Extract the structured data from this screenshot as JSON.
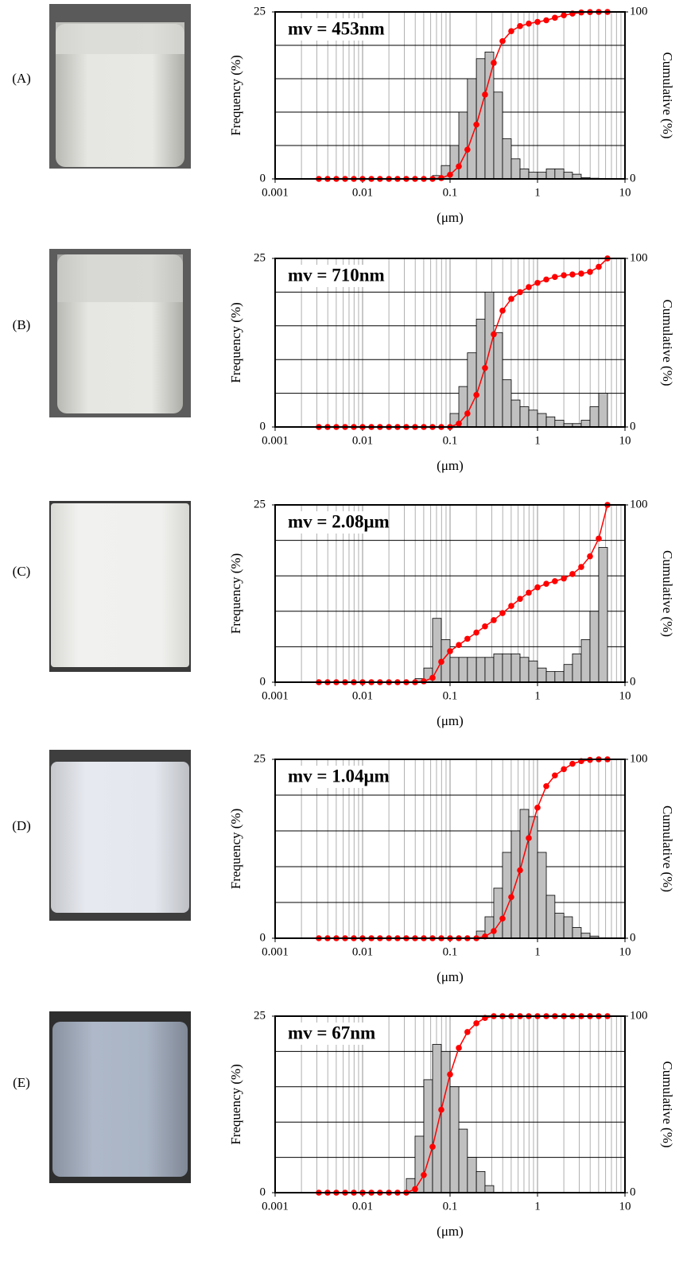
{
  "chart_data": [
    {
      "type": "histogram",
      "label": "(A)",
      "annotation": "mv = 453nm",
      "xlabel": "(μm)",
      "ylabel": "Frequency (%)",
      "y2label": "Cumulative (%)",
      "log_x": true,
      "xlim": [
        0.001,
        10
      ],
      "xticks": [
        0.001,
        0.01,
        0.1,
        1,
        10
      ],
      "xgrid": [
        0.002,
        0.003,
        0.004,
        0.005,
        0.006,
        0.007,
        0.008,
        0.009,
        0.02,
        0.03,
        0.04,
        0.05,
        0.06,
        0.07,
        0.08,
        0.09,
        0.2,
        0.3,
        0.4,
        0.5,
        0.6,
        0.7,
        0.8,
        0.9,
        2,
        3,
        4,
        5,
        6,
        7,
        8,
        9
      ],
      "ylim": [
        0,
        25
      ],
      "yticks": [
        0,
        25
      ],
      "ygrid": [
        5,
        10,
        15,
        20
      ],
      "y2lim": [
        0,
        100
      ],
      "y2ticks": [
        0,
        100
      ],
      "bins": [
        0.00316,
        0.00398,
        0.00501,
        0.00631,
        0.00794,
        0.01,
        0.0126,
        0.0158,
        0.02,
        0.0251,
        0.0316,
        0.0398,
        0.0501,
        0.0631,
        0.0794,
        0.1,
        0.126,
        0.158,
        0.2,
        0.251,
        0.316,
        0.398,
        0.501,
        0.631,
        0.794,
        1,
        1.26,
        1.58,
        2,
        2.51,
        3.16,
        3.98,
        5.01,
        6.31
      ],
      "counts": [
        0,
        0,
        0,
        0,
        0,
        0,
        0,
        0,
        0,
        0,
        0,
        0,
        0,
        0.5,
        2,
        5,
        10,
        15,
        18,
        19,
        13,
        6,
        3,
        1.5,
        1,
        1,
        1.5,
        1.5,
        1,
        0.7,
        0.2,
        0.1,
        0
      ],
      "cumulative": [
        0,
        0,
        0,
        0,
        0,
        0,
        0,
        0,
        0,
        0,
        0,
        0,
        0,
        0,
        0.5,
        2.5,
        7.5,
        17.5,
        32.5,
        50.5,
        69.5,
        82.5,
        88.5,
        91.5,
        93,
        94,
        95,
        96.5,
        98,
        99,
        99.7,
        99.9,
        100,
        100
      ],
      "bar_color": "#c0c0c0",
      "line_color": "#ff0000"
    },
    {
      "type": "histogram",
      "label": "(B)",
      "annotation": "mv = 710nm",
      "xlabel": "(μm)",
      "ylabel": "Frequency (%)",
      "y2label": "Cumulative (%)",
      "log_x": true,
      "xlim": [
        0.001,
        10
      ],
      "xticks": [
        0.001,
        0.01,
        0.1,
        1,
        10
      ],
      "xgrid": [
        0.002,
        0.003,
        0.004,
        0.005,
        0.006,
        0.007,
        0.008,
        0.009,
        0.02,
        0.03,
        0.04,
        0.05,
        0.06,
        0.07,
        0.08,
        0.09,
        0.2,
        0.3,
        0.4,
        0.5,
        0.6,
        0.7,
        0.8,
        0.9,
        2,
        3,
        4,
        5,
        6,
        7,
        8,
        9
      ],
      "ylim": [
        0,
        25
      ],
      "yticks": [
        0,
        25
      ],
      "ygrid": [
        5,
        10,
        15,
        20
      ],
      "y2lim": [
        0,
        100
      ],
      "y2ticks": [
        0,
        100
      ],
      "bins": [
        0.00316,
        0.00398,
        0.00501,
        0.00631,
        0.00794,
        0.01,
        0.0126,
        0.0158,
        0.02,
        0.0251,
        0.0316,
        0.0398,
        0.0501,
        0.0631,
        0.0794,
        0.1,
        0.126,
        0.158,
        0.2,
        0.251,
        0.316,
        0.398,
        0.501,
        0.631,
        0.794,
        1,
        1.26,
        1.58,
        2,
        2.51,
        3.16,
        3.98,
        5.01,
        6.31
      ],
      "counts": [
        0,
        0,
        0,
        0,
        0,
        0,
        0,
        0,
        0,
        0,
        0,
        0,
        0,
        0,
        0,
        2,
        6,
        11,
        16,
        20,
        14,
        7,
        4,
        3,
        2.5,
        2,
        1.5,
        1,
        0.5,
        0.5,
        1,
        3,
        5
      ],
      "cumulative": [
        0,
        0,
        0,
        0,
        0,
        0,
        0,
        0,
        0,
        0,
        0,
        0,
        0,
        0,
        0,
        0,
        2,
        8,
        19,
        35,
        55,
        69,
        76,
        80,
        83,
        85.5,
        87.5,
        89,
        90,
        90.5,
        91,
        92,
        95,
        100
      ],
      "bar_color": "#c0c0c0",
      "line_color": "#ff0000"
    },
    {
      "type": "histogram",
      "label": "(C)",
      "annotation": "mv = 2.08μm",
      "xlabel": "(μm)",
      "ylabel": "Frequency (%)",
      "y2label": "Cumulative (%)",
      "log_x": true,
      "xlim": [
        0.001,
        10
      ],
      "xticks": [
        0.001,
        0.01,
        0.1,
        1,
        10
      ],
      "xgrid": [
        0.002,
        0.003,
        0.004,
        0.005,
        0.006,
        0.007,
        0.008,
        0.009,
        0.02,
        0.03,
        0.04,
        0.05,
        0.06,
        0.07,
        0.08,
        0.09,
        0.2,
        0.3,
        0.4,
        0.5,
        0.6,
        0.7,
        0.8,
        0.9,
        2,
        3,
        4,
        5,
        6,
        7,
        8,
        9
      ],
      "ylim": [
        0,
        25
      ],
      "yticks": [
        0,
        25
      ],
      "ygrid": [
        5,
        10,
        15,
        20
      ],
      "y2lim": [
        0,
        100
      ],
      "y2ticks": [
        0,
        100
      ],
      "bins": [
        0.00316,
        0.00398,
        0.00501,
        0.00631,
        0.00794,
        0.01,
        0.0126,
        0.0158,
        0.02,
        0.0251,
        0.0316,
        0.0398,
        0.0501,
        0.0631,
        0.0794,
        0.1,
        0.126,
        0.158,
        0.2,
        0.251,
        0.316,
        0.398,
        0.501,
        0.631,
        0.794,
        1,
        1.26,
        1.58,
        2,
        2.51,
        3.16,
        3.98,
        5.01,
        6.31
      ],
      "counts": [
        0,
        0,
        0,
        0,
        0,
        0,
        0,
        0,
        0,
        0,
        0,
        0.5,
        2,
        9,
        6,
        3.5,
        3.5,
        3.5,
        3.5,
        3.5,
        4,
        4,
        4,
        3.5,
        3,
        2,
        1.5,
        1.5,
        2.5,
        4,
        6,
        10,
        19
      ],
      "cumulative": [
        0,
        0,
        0,
        0,
        0,
        0,
        0,
        0,
        0,
        0,
        0,
        0,
        0.5,
        2.5,
        11.5,
        17.5,
        21,
        24.5,
        28,
        31.5,
        35,
        39,
        43,
        47,
        50.5,
        53.5,
        55.5,
        57,
        58.5,
        61,
        65,
        71,
        81,
        100
      ],
      "bar_color": "#c0c0c0",
      "line_color": "#ff0000"
    },
    {
      "type": "histogram",
      "label": "(D)",
      "annotation": "mv = 1.04μm",
      "xlabel": "(μm)",
      "ylabel": "Frequency (%)",
      "y2label": "Cumulative (%)",
      "log_x": true,
      "xlim": [
        0.001,
        10
      ],
      "xticks": [
        0.001,
        0.01,
        0.1,
        1,
        10
      ],
      "xgrid": [
        0.002,
        0.003,
        0.004,
        0.005,
        0.006,
        0.007,
        0.008,
        0.009,
        0.02,
        0.03,
        0.04,
        0.05,
        0.06,
        0.07,
        0.08,
        0.09,
        0.2,
        0.3,
        0.4,
        0.5,
        0.6,
        0.7,
        0.8,
        0.9,
        2,
        3,
        4,
        5,
        6,
        7,
        8,
        9
      ],
      "ylim": [
        0,
        25
      ],
      "yticks": [
        0,
        25
      ],
      "ygrid": [
        5,
        10,
        15,
        20
      ],
      "y2lim": [
        0,
        100
      ],
      "y2ticks": [
        0,
        100
      ],
      "bins": [
        0.00316,
        0.00398,
        0.00501,
        0.00631,
        0.00794,
        0.01,
        0.0126,
        0.0158,
        0.02,
        0.0251,
        0.0316,
        0.0398,
        0.0501,
        0.0631,
        0.0794,
        0.1,
        0.126,
        0.158,
        0.2,
        0.251,
        0.316,
        0.398,
        0.501,
        0.631,
        0.794,
        1,
        1.26,
        1.58,
        2,
        2.51,
        3.16,
        3.98,
        5.01,
        6.31
      ],
      "counts": [
        0,
        0,
        0,
        0,
        0,
        0,
        0,
        0,
        0,
        0,
        0,
        0,
        0,
        0,
        0,
        0,
        0,
        0,
        1,
        3,
        7,
        12,
        15,
        18,
        17,
        12,
        6,
        3.5,
        3,
        1.5,
        0.7,
        0.3,
        0
      ],
      "cumulative": [
        0,
        0,
        0,
        0,
        0,
        0,
        0,
        0,
        0,
        0,
        0,
        0,
        0,
        0,
        0,
        0,
        0,
        0,
        0,
        1,
        4,
        11,
        23,
        38,
        56,
        73,
        85,
        91,
        94.5,
        97.5,
        99,
        99.7,
        100,
        100
      ],
      "bar_color": "#c0c0c0",
      "line_color": "#ff0000"
    },
    {
      "type": "histogram",
      "label": "(E)",
      "annotation": "mv = 67nm",
      "xlabel": "(μm)",
      "ylabel": "Frequency (%)",
      "y2label": "Cumulative (%)",
      "log_x": true,
      "xlim": [
        0.001,
        10
      ],
      "xticks": [
        0.001,
        0.01,
        0.1,
        1,
        10
      ],
      "xgrid": [
        0.002,
        0.003,
        0.004,
        0.005,
        0.006,
        0.007,
        0.008,
        0.009,
        0.02,
        0.03,
        0.04,
        0.05,
        0.06,
        0.07,
        0.08,
        0.09,
        0.2,
        0.3,
        0.4,
        0.5,
        0.6,
        0.7,
        0.8,
        0.9,
        2,
        3,
        4,
        5,
        6,
        7,
        8,
        9
      ],
      "ylim": [
        0,
        25
      ],
      "yticks": [
        0,
        25
      ],
      "ygrid": [
        5,
        10,
        15,
        20
      ],
      "y2lim": [
        0,
        100
      ],
      "y2ticks": [
        0,
        100
      ],
      "bins": [
        0.00316,
        0.00398,
        0.00501,
        0.00631,
        0.00794,
        0.01,
        0.0126,
        0.0158,
        0.02,
        0.0251,
        0.0316,
        0.0398,
        0.0501,
        0.0631,
        0.0794,
        0.1,
        0.126,
        0.158,
        0.2,
        0.251,
        0.316,
        0.398,
        0.501,
        0.631,
        0.794,
        1,
        1.26,
        1.58,
        2,
        2.51,
        3.16,
        3.98,
        5.01,
        6.31
      ],
      "counts": [
        0,
        0,
        0,
        0,
        0,
        0,
        0,
        0,
        0,
        0,
        2,
        8,
        16,
        21,
        20,
        15,
        9,
        5,
        3,
        1,
        0,
        0,
        0,
        0,
        0,
        0,
        0,
        0,
        0,
        0,
        0,
        0,
        0
      ],
      "cumulative": [
        0,
        0,
        0,
        0,
        0,
        0,
        0,
        0,
        0,
        0,
        0,
        2,
        10,
        26,
        47,
        67,
        82,
        91,
        96,
        99,
        100,
        100,
        100,
        100,
        100,
        100,
        100,
        100,
        100,
        100,
        100,
        100,
        100,
        100
      ],
      "bar_color": "#c0c0c0",
      "line_color": "#ff0000"
    }
  ]
}
